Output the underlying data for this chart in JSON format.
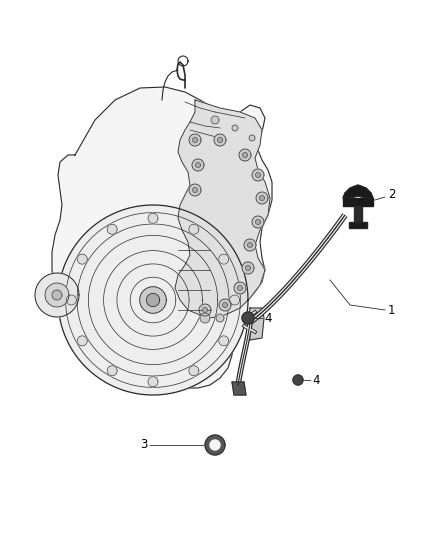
{
  "background_color": "#ffffff",
  "fig_width": 4.38,
  "fig_height": 5.33,
  "dpi": 100,
  "line_color": "#2a2a2a",
  "label_font_size": 8.5,
  "label_color": "#000000"
}
